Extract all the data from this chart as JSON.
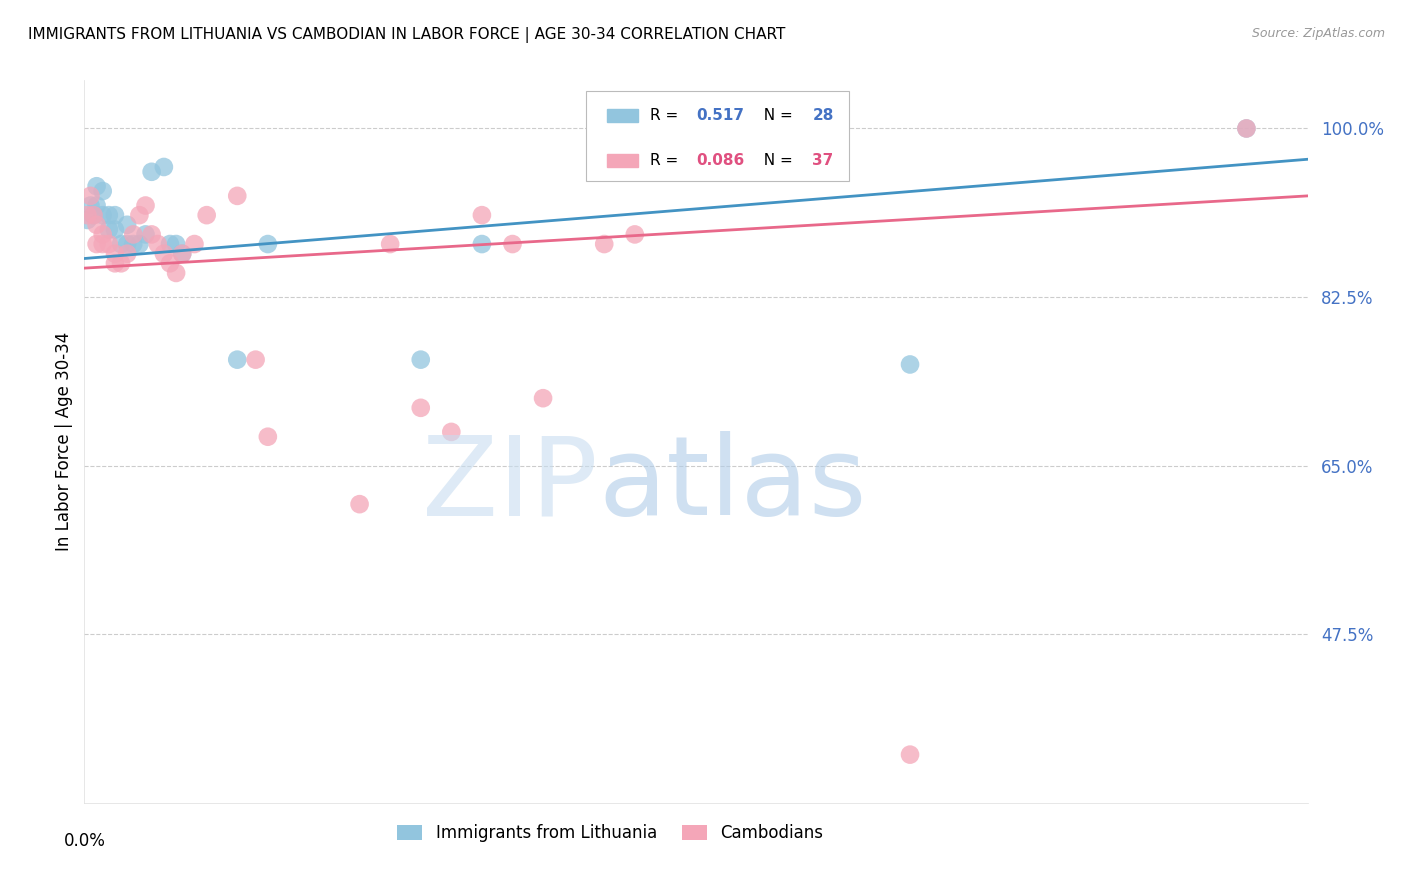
{
  "title": "IMMIGRANTS FROM LITHUANIA VS CAMBODIAN IN LABOR FORCE | AGE 30-34 CORRELATION CHART",
  "source": "Source: ZipAtlas.com",
  "ylabel": "In Labor Force | Age 30-34",
  "ytick_labels": [
    "100.0%",
    "82.5%",
    "65.0%",
    "47.5%"
  ],
  "ytick_values": [
    1.0,
    0.825,
    0.65,
    0.475
  ],
  "xlim": [
    0.0,
    0.2
  ],
  "ylim": [
    0.3,
    1.05
  ],
  "blue_color": "#92c5de",
  "pink_color": "#f4a6b8",
  "blue_line_color": "#4393c3",
  "pink_line_color": "#e8688a",
  "blue_points_x": [
    0.0005,
    0.001,
    0.0015,
    0.002,
    0.002,
    0.003,
    0.003,
    0.004,
    0.004,
    0.005,
    0.005,
    0.006,
    0.007,
    0.007,
    0.008,
    0.009,
    0.01,
    0.011,
    0.013,
    0.014,
    0.015,
    0.016,
    0.025,
    0.03,
    0.055,
    0.065,
    0.135,
    0.19
  ],
  "blue_points_y": [
    0.905,
    0.92,
    0.91,
    0.94,
    0.92,
    0.935,
    0.91,
    0.91,
    0.895,
    0.895,
    0.91,
    0.88,
    0.88,
    0.9,
    0.88,
    0.88,
    0.89,
    0.955,
    0.96,
    0.88,
    0.88,
    0.87,
    0.76,
    0.88,
    0.76,
    0.88,
    0.755,
    1.0
  ],
  "pink_points_x": [
    0.0005,
    0.001,
    0.0015,
    0.002,
    0.002,
    0.003,
    0.003,
    0.004,
    0.005,
    0.005,
    0.006,
    0.007,
    0.008,
    0.009,
    0.01,
    0.011,
    0.012,
    0.013,
    0.014,
    0.015,
    0.016,
    0.018,
    0.02,
    0.025,
    0.028,
    0.03,
    0.045,
    0.05,
    0.055,
    0.06,
    0.065,
    0.07,
    0.075,
    0.085,
    0.09,
    0.135,
    0.19
  ],
  "pink_points_y": [
    0.91,
    0.93,
    0.91,
    0.9,
    0.88,
    0.89,
    0.88,
    0.88,
    0.87,
    0.86,
    0.86,
    0.87,
    0.89,
    0.91,
    0.92,
    0.89,
    0.88,
    0.87,
    0.86,
    0.85,
    0.87,
    0.88,
    0.91,
    0.93,
    0.76,
    0.68,
    0.61,
    0.88,
    0.71,
    0.685,
    0.91,
    0.88,
    0.72,
    0.88,
    0.89,
    0.35,
    1.0
  ],
  "blue_line_x": [
    0.0,
    0.2
  ],
  "blue_line_y": [
    0.865,
    0.968
  ],
  "pink_line_x": [
    0.0,
    0.2
  ],
  "pink_line_y": [
    0.855,
    0.93
  ],
  "legend_r1_text": "R = ",
  "legend_r1_val": "0.517",
  "legend_n1_text": "N = ",
  "legend_n1_val": "28",
  "legend_r2_text": "R = ",
  "legend_r2_val": "0.086",
  "legend_n2_text": "N = ",
  "legend_n2_val": "37",
  "blue_label": "Immigrants from Lithuania",
  "pink_label": "Cambodians",
  "ytick_color": "#4472c4",
  "grid_color": "#cccccc",
  "watermark_zip_color": "#c8ddf0",
  "watermark_atlas_color": "#b0cce8"
}
